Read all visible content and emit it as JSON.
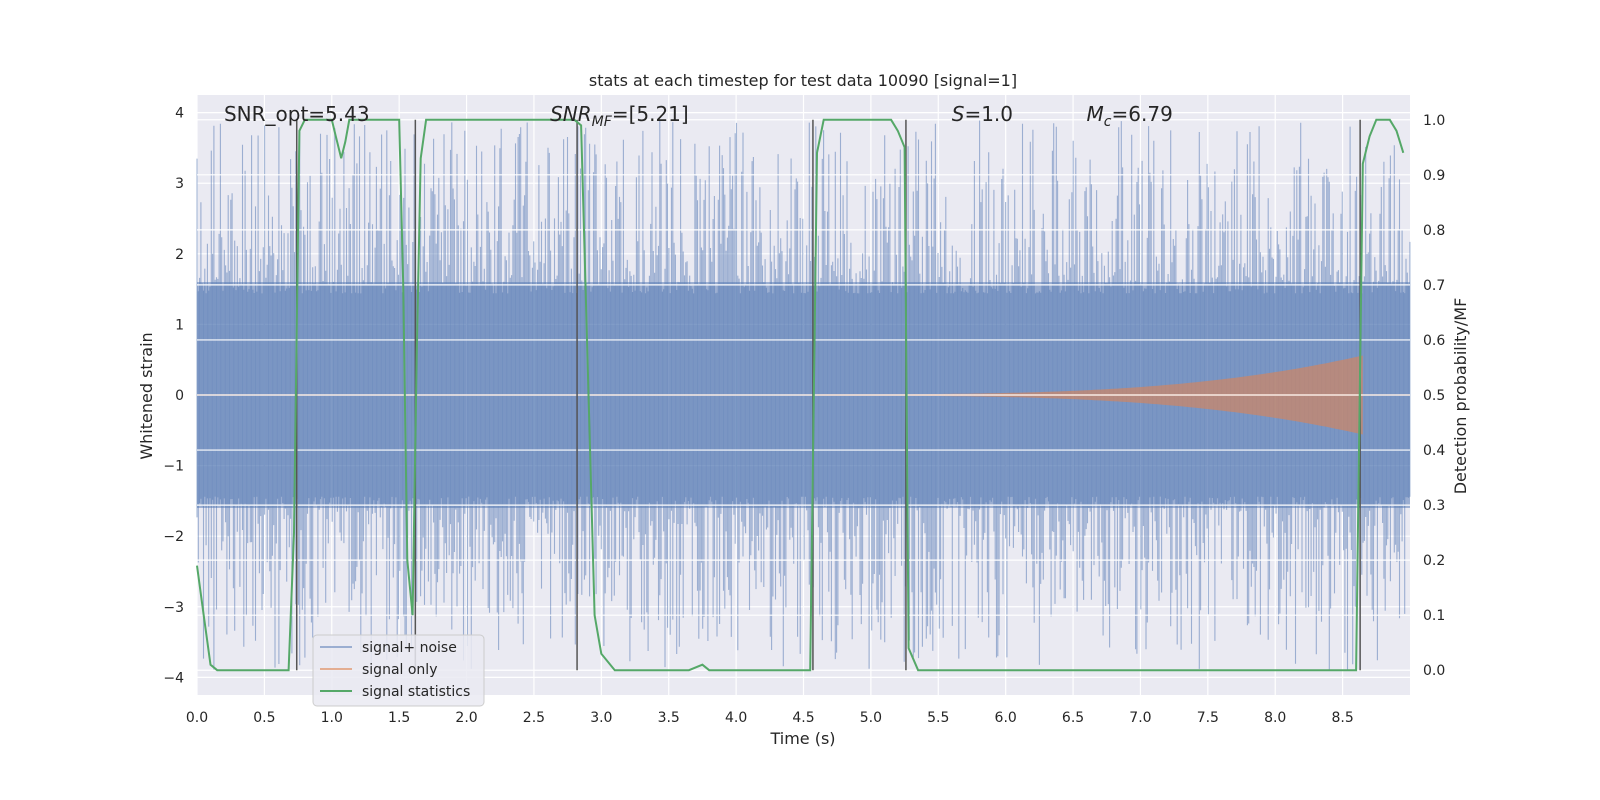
{
  "chart_data": {
    "type": "line",
    "title": "stats at each timestep for test data 10090 [signal=1]",
    "xlabel": "Time (s)",
    "ylabel": "Whitened strain",
    "y2label": "Detection probability/MF",
    "xlim": [
      0.0,
      9.0
    ],
    "ylim": [
      -4.25,
      4.25
    ],
    "y2lim": [
      -0.045,
      1.045
    ],
    "x_ticks": [
      0.0,
      0.5,
      1.0,
      1.5,
      2.0,
      2.5,
      3.0,
      3.5,
      4.0,
      4.5,
      5.0,
      5.5,
      6.0,
      6.5,
      7.0,
      7.5,
      8.0,
      8.5
    ],
    "x_tick_labels": [
      "0.0",
      "0.5",
      "1.0",
      "1.5",
      "2.0",
      "2.5",
      "3.0",
      "3.5",
      "4.0",
      "4.5",
      "5.0",
      "5.5",
      "6.0",
      "6.5",
      "7.0",
      "7.5",
      "8.0",
      "8.5"
    ],
    "y_ticks": [
      4,
      3,
      2,
      1,
      0,
      -1,
      -2,
      -3,
      -4
    ],
    "y_tick_labels": [
      "4",
      "3",
      "2",
      "1",
      "0",
      "−1",
      "−2",
      "−3",
      "−4"
    ],
    "y2_ticks": [
      1.0,
      0.9,
      0.8,
      0.7,
      0.6,
      0.5,
      0.4,
      0.3,
      0.2,
      0.1,
      0.0
    ],
    "y2_tick_labels": [
      "1.0",
      "0.9",
      "0.8",
      "0.7",
      "0.6",
      "0.5",
      "0.4",
      "0.3",
      "0.2",
      "0.1",
      "0.0"
    ],
    "grid": true,
    "annotations": [
      {
        "x": 0.2,
        "text": "SNR_opt=5.43"
      },
      {
        "x": 2.62,
        "text": "SNR_MF=[5.21]"
      },
      {
        "x": 5.6,
        "text": "S=1.0"
      },
      {
        "x": 6.6,
        "text": "M_c=6.79"
      }
    ],
    "legend": {
      "placement": "lower-left",
      "entries": [
        "signal+ noise",
        "signal only",
        "signal statistics"
      ]
    },
    "series": [
      {
        "name": "signal+ noise",
        "kind": "noise-band",
        "color": "#4c72b0",
        "core_amplitude": 1.6,
        "peak_amplitude": 3.9
      },
      {
        "name": "signal only",
        "kind": "chirp",
        "color": "#dd8452",
        "start_x": 4.6,
        "end_x": 8.65,
        "max_amplitude": 0.55
      },
      {
        "name": "signal statistics",
        "color": "#55a868",
        "axis": "right",
        "x": [
          0.0,
          0.05,
          0.1,
          0.15,
          0.2,
          0.3,
          0.4,
          0.5,
          0.6,
          0.68,
          0.72,
          0.76,
          0.8,
          0.9,
          1.0,
          1.03,
          1.07,
          1.1,
          1.13,
          1.2,
          1.3,
          1.4,
          1.5,
          1.53,
          1.56,
          1.6,
          1.63,
          1.66,
          1.7,
          1.75,
          1.8,
          2.0,
          2.2,
          2.4,
          2.6,
          2.75,
          2.8,
          2.85,
          2.95,
          3.0,
          3.1,
          3.3,
          3.5,
          3.65,
          3.75,
          3.8,
          3.9,
          4.0,
          4.2,
          4.4,
          4.5,
          4.55,
          4.6,
          4.65,
          4.8,
          5.0,
          5.15,
          5.2,
          5.25,
          5.28,
          5.35,
          5.4,
          5.6,
          6.0,
          7.0,
          8.0,
          8.5,
          8.6,
          8.65,
          8.7,
          8.75,
          8.8,
          8.85,
          8.9,
          8.95
        ],
        "values": [
          0.19,
          0.1,
          0.01,
          0.0,
          0.0,
          0.0,
          0.0,
          0.0,
          0.0,
          0.0,
          0.25,
          0.98,
          1.0,
          1.0,
          1.0,
          0.97,
          0.93,
          0.96,
          1.0,
          1.0,
          1.0,
          1.0,
          1.0,
          0.7,
          0.2,
          0.1,
          0.57,
          0.93,
          1.0,
          1.0,
          1.0,
          1.0,
          1.0,
          1.0,
          1.0,
          1.0,
          1.0,
          0.99,
          0.1,
          0.03,
          0.0,
          0.0,
          0.0,
          0.0,
          0.01,
          0.0,
          0.0,
          0.0,
          0.0,
          0.0,
          0.0,
          0.0,
          0.94,
          1.0,
          1.0,
          1.0,
          1.0,
          0.98,
          0.95,
          0.04,
          0.0,
          0.0,
          0.0,
          0.0,
          0.0,
          0.0,
          0.0,
          0.0,
          0.92,
          0.97,
          1.0,
          1.0,
          1.0,
          0.98,
          0.94
        ]
      }
    ],
    "vertical_markers": {
      "color": "#555555",
      "x": [
        0.74,
        1.62,
        2.82,
        4.57,
        5.26,
        8.63
      ]
    }
  }
}
